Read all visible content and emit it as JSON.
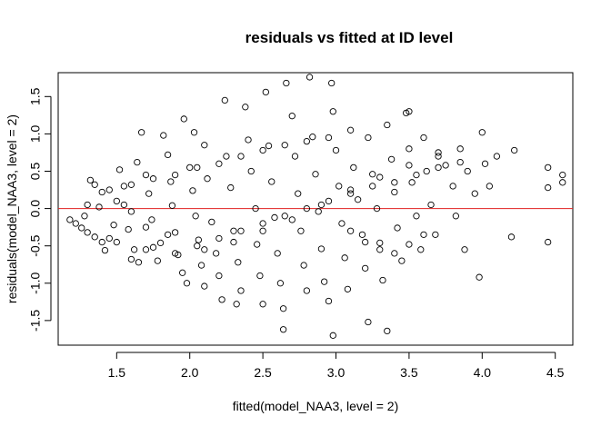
{
  "chart_data": {
    "type": "scatter",
    "title": "residuals vs fitted at ID level",
    "xlabel": "fitted(model_NAA3, level = 2)",
    "ylabel": "residuals(model_NAA3, level = 2)",
    "xlim": [
      1.1,
      4.62
    ],
    "ylim": [
      -1.83,
      1.82
    ],
    "x_ticks": [
      1.5,
      2.0,
      2.5,
      3.0,
      3.5,
      4.0,
      4.5
    ],
    "x_tick_labels": [
      "1.5",
      "2.0",
      "2.5",
      "3.0",
      "3.5",
      "4.0",
      "4.5"
    ],
    "y_ticks": [
      -1.5,
      -1.0,
      -0.5,
      0.0,
      0.5,
      1.0,
      1.5
    ],
    "y_tick_labels": [
      "-1.5",
      "-1.0",
      "-0.5",
      "0.0",
      "0.5",
      "1.0",
      "1.5"
    ],
    "reference_line": {
      "y": 0,
      "color": "#e02020"
    },
    "point_style": "open-circle",
    "point_color": "#000000",
    "grid": false,
    "points": [
      [
        1.18,
        -0.15
      ],
      [
        1.22,
        -0.2
      ],
      [
        1.26,
        -0.26
      ],
      [
        1.3,
        -0.32
      ],
      [
        1.35,
        -0.38
      ],
      [
        1.28,
        -0.1
      ],
      [
        1.3,
        0.05
      ],
      [
        1.32,
        0.38
      ],
      [
        1.35,
        0.32
      ],
      [
        1.4,
        0.22
      ],
      [
        1.38,
        0.02
      ],
      [
        1.4,
        -0.45
      ],
      [
        1.45,
        -0.4
      ],
      [
        1.42,
        -0.56
      ],
      [
        1.48,
        -0.22
      ],
      [
        1.5,
        0.1
      ],
      [
        1.52,
        0.52
      ],
      [
        1.55,
        0.3
      ],
      [
        1.6,
        -0.04
      ],
      [
        1.58,
        -0.28
      ],
      [
        1.62,
        -0.55
      ],
      [
        1.6,
        -0.68
      ],
      [
        1.65,
        -0.72
      ],
      [
        1.64,
        0.62
      ],
      [
        1.67,
        1.02
      ],
      [
        1.7,
        0.45
      ],
      [
        1.72,
        0.2
      ],
      [
        1.74,
        -0.15
      ],
      [
        1.75,
        -0.52
      ],
      [
        1.78,
        -0.7
      ],
      [
        1.8,
        -0.46
      ],
      [
        1.82,
        0.98
      ],
      [
        1.85,
        0.72
      ],
      [
        1.87,
        0.36
      ],
      [
        1.88,
        0.04
      ],
      [
        1.9,
        -0.32
      ],
      [
        1.92,
        -0.62
      ],
      [
        1.95,
        -0.86
      ],
      [
        1.98,
        -1.0
      ],
      [
        2.0,
        0.55
      ],
      [
        2.02,
        0.24
      ],
      [
        2.04,
        -0.1
      ],
      [
        2.06,
        -0.42
      ],
      [
        2.08,
        -0.76
      ],
      [
        2.1,
        -1.04
      ],
      [
        1.96,
        1.2
      ],
      [
        2.03,
        1.02
      ],
      [
        2.1,
        0.85
      ],
      [
        2.12,
        0.4
      ],
      [
        2.15,
        -0.18
      ],
      [
        2.18,
        -0.6
      ],
      [
        2.2,
        -0.9
      ],
      [
        2.22,
        -1.22
      ],
      [
        2.24,
        1.45
      ],
      [
        2.25,
        0.7
      ],
      [
        2.28,
        0.28
      ],
      [
        2.3,
        -0.3
      ],
      [
        2.33,
        -0.72
      ],
      [
        2.35,
        -1.1
      ],
      [
        2.38,
        1.36
      ],
      [
        2.4,
        0.92
      ],
      [
        2.42,
        0.5
      ],
      [
        2.45,
        0.0
      ],
      [
        2.46,
        -0.48
      ],
      [
        2.48,
        -0.9
      ],
      [
        2.5,
        -1.28
      ],
      [
        2.52,
        1.56
      ],
      [
        2.54,
        0.84
      ],
      [
        2.56,
        0.36
      ],
      [
        2.58,
        -0.12
      ],
      [
        2.6,
        -0.6
      ],
      [
        2.62,
        -1.0
      ],
      [
        2.64,
        -1.34
      ],
      [
        2.66,
        1.68
      ],
      [
        2.7,
        1.24
      ],
      [
        2.72,
        0.7
      ],
      [
        2.74,
        0.2
      ],
      [
        2.76,
        -0.3
      ],
      [
        2.78,
        -0.76
      ],
      [
        2.8,
        -1.1
      ],
      [
        2.82,
        1.76
      ],
      [
        2.84,
        0.96
      ],
      [
        2.86,
        0.46
      ],
      [
        2.88,
        -0.04
      ],
      [
        2.9,
        -0.54
      ],
      [
        2.92,
        -0.98
      ],
      [
        2.95,
        -1.24
      ],
      [
        2.97,
        1.68
      ],
      [
        2.98,
        1.3
      ],
      [
        3.0,
        0.78
      ],
      [
        3.02,
        0.3
      ],
      [
        3.04,
        -0.2
      ],
      [
        3.06,
        -0.66
      ],
      [
        3.08,
        -1.08
      ],
      [
        3.1,
        1.05
      ],
      [
        3.12,
        0.55
      ],
      [
        3.15,
        0.12
      ],
      [
        3.18,
        -0.35
      ],
      [
        3.2,
        -0.8
      ],
      [
        3.22,
        0.95
      ],
      [
        3.25,
        0.46
      ],
      [
        3.28,
        0.0
      ],
      [
        3.3,
        -0.46
      ],
      [
        3.32,
        -0.96
      ],
      [
        3.35,
        1.12
      ],
      [
        3.38,
        0.66
      ],
      [
        3.4,
        0.22
      ],
      [
        3.42,
        -0.26
      ],
      [
        3.45,
        -0.7
      ],
      [
        3.48,
        1.28
      ],
      [
        3.5,
        0.8
      ],
      [
        3.52,
        0.35
      ],
      [
        3.55,
        -0.1
      ],
      [
        3.58,
        -0.55
      ],
      [
        3.6,
        0.95
      ],
      [
        3.62,
        0.5
      ],
      [
        3.65,
        0.05
      ],
      [
        3.68,
        -0.35
      ],
      [
        3.7,
        0.75
      ],
      [
        3.75,
        0.58
      ],
      [
        3.8,
        0.3
      ],
      [
        3.82,
        -0.1
      ],
      [
        3.85,
        0.8
      ],
      [
        3.88,
        -0.55
      ],
      [
        3.9,
        0.5
      ],
      [
        3.95,
        0.2
      ],
      [
        3.98,
        -0.92
      ],
      [
        4.0,
        1.02
      ],
      [
        4.02,
        0.6
      ],
      [
        4.05,
        0.3
      ],
      [
        4.1,
        0.7
      ],
      [
        4.2,
        -0.38
      ],
      [
        4.45,
        0.55
      ],
      [
        4.45,
        0.28
      ],
      [
        4.45,
        -0.45
      ],
      [
        4.55,
        0.45
      ],
      [
        4.55,
        0.35
      ],
      [
        2.98,
        -1.7
      ],
      [
        3.22,
        -1.52
      ],
      [
        3.35,
        -1.64
      ],
      [
        2.64,
        -1.62
      ],
      [
        4.22,
        0.78
      ],
      [
        3.5,
        1.3
      ],
      [
        2.32,
        -1.28
      ],
      [
        1.55,
        0.05
      ],
      [
        1.7,
        -0.25
      ],
      [
        1.85,
        -0.35
      ],
      [
        2.05,
        -0.5
      ],
      [
        2.2,
        -0.4
      ],
      [
        2.35,
        -0.3
      ],
      [
        2.5,
        -0.2
      ],
      [
        2.65,
        -0.1
      ],
      [
        2.8,
        0.0
      ],
      [
        2.95,
        0.1
      ],
      [
        3.1,
        0.2
      ],
      [
        3.25,
        0.3
      ],
      [
        3.4,
        0.35
      ],
      [
        3.55,
        0.45
      ],
      [
        3.7,
        0.55
      ],
      [
        3.85,
        0.62
      ],
      [
        1.5,
        -0.45
      ],
      [
        1.7,
        -0.55
      ],
      [
        1.9,
        -0.6
      ],
      [
        2.1,
        -0.55
      ],
      [
        2.3,
        -0.45
      ],
      [
        2.5,
        -0.3
      ],
      [
        2.7,
        -0.15
      ],
      [
        2.9,
        0.05
      ],
      [
        3.1,
        0.25
      ],
      [
        3.3,
        0.42
      ],
      [
        3.5,
        0.58
      ],
      [
        3.7,
        0.7
      ],
      [
        1.45,
        0.25
      ],
      [
        1.6,
        0.32
      ],
      [
        1.75,
        0.4
      ],
      [
        1.9,
        0.45
      ],
      [
        2.05,
        0.55
      ],
      [
        2.2,
        0.6
      ],
      [
        2.35,
        0.7
      ],
      [
        2.5,
        0.78
      ],
      [
        2.65,
        0.85
      ],
      [
        2.8,
        0.9
      ],
      [
        2.95,
        0.95
      ],
      [
        3.1,
        -0.3
      ],
      [
        3.2,
        -0.45
      ],
      [
        3.3,
        -0.55
      ],
      [
        3.4,
        -0.6
      ],
      [
        3.5,
        -0.48
      ],
      [
        3.6,
        -0.35
      ]
    ]
  }
}
